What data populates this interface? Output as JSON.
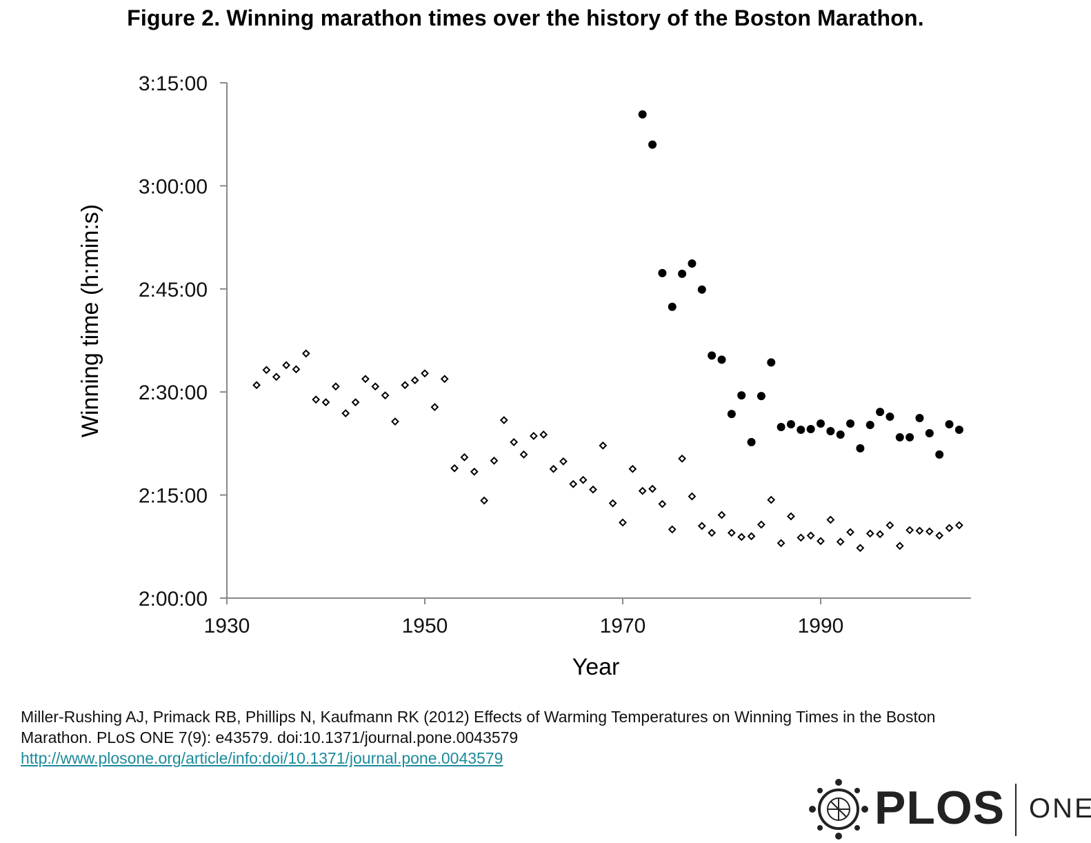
{
  "title": "Figure 2. Winning marathon times over the history of the Boston Marathon.",
  "citation": {
    "line1": "Miller-Rushing AJ, Primack RB, Phillips N, Kaufmann RK (2012) Effects of Warming Temperatures on Winning Times in the Boston",
    "line2": "Marathon. PLoS ONE 7(9): e43579. doi:10.1371/journal.pone.0043579",
    "link": "http://www.plosone.org/article/info:doi/10.1371/journal.pone.0043579"
  },
  "logo": {
    "brand": "PLOS",
    "sub": "ONE"
  },
  "colors": {
    "axis": "#888888",
    "marker": "#000000",
    "link": "#1a8a9a"
  },
  "chart_data": {
    "type": "scatter",
    "title": "",
    "xlabel": "Year",
    "ylabel": "Winning time (h:min:s)",
    "xlim": [
      1930,
      2005
    ],
    "ylim": [
      120,
      195
    ],
    "xticks": [
      1930,
      1950,
      1970,
      1990
    ],
    "yticks": [
      {
        "value": 120,
        "label": "2:00:00"
      },
      {
        "value": 135,
        "label": "2:15:00"
      },
      {
        "value": 150,
        "label": "2:30:00"
      },
      {
        "value": 165,
        "label": "2:45:00"
      },
      {
        "value": 180,
        "label": "3:00:00"
      },
      {
        "value": 195,
        "label": "3:15:00"
      }
    ],
    "y_units": "minutes",
    "grid": false,
    "legend": "none",
    "series": [
      {
        "marker": "open-diamond",
        "x": [
          1933,
          1934,
          1935,
          1936,
          1937,
          1938,
          1939,
          1940,
          1941,
          1942,
          1943,
          1944,
          1945,
          1946,
          1947,
          1948,
          1949,
          1950,
          1951,
          1952,
          1953,
          1954,
          1955,
          1956,
          1957,
          1958,
          1959,
          1960,
          1961,
          1962,
          1963,
          1964,
          1965,
          1966,
          1967,
          1968,
          1969,
          1970,
          1971,
          1972,
          1973,
          1974,
          1975,
          1976,
          1977,
          1978,
          1979,
          1980,
          1981,
          1982,
          1983,
          1984,
          1985,
          1986,
          1987,
          1988,
          1989,
          1990,
          1991,
          1992,
          1993,
          1994,
          1995,
          1996,
          1997,
          1998,
          1999,
          2000,
          2001,
          2002,
          2003,
          2004
        ],
        "y": [
          151.0,
          153.2,
          152.2,
          153.9,
          153.3,
          155.6,
          148.9,
          148.5,
          150.8,
          146.9,
          148.5,
          151.9,
          150.8,
          149.5,
          145.7,
          151.0,
          151.7,
          152.7,
          147.8,
          151.9,
          138.9,
          140.5,
          138.4,
          134.2,
          140.0,
          145.9,
          142.7,
          140.9,
          143.6,
          143.8,
          138.8,
          139.9,
          136.6,
          137.2,
          135.8,
          142.2,
          133.8,
          131.0,
          138.8,
          135.6,
          135.9,
          133.7,
          130.0,
          140.3,
          134.8,
          130.5,
          129.5,
          132.1,
          129.5,
          128.9,
          129.0,
          130.7,
          134.3,
          128.0,
          131.9,
          128.8,
          129.1,
          128.3,
          131.4,
          128.2,
          129.6,
          127.3,
          129.4,
          129.3,
          130.6,
          127.6,
          129.9,
          129.8,
          129.7,
          129.1,
          130.2,
          130.6
        ]
      },
      {
        "marker": "filled-circle",
        "x": [
          1972,
          1973,
          1974,
          1975,
          1976,
          1977,
          1978,
          1979,
          1980,
          1981,
          1982,
          1983,
          1984,
          1985,
          1986,
          1987,
          1988,
          1989,
          1990,
          1991,
          1992,
          1993,
          1994,
          1995,
          1996,
          1997,
          1998,
          1999,
          2000,
          2001,
          2002,
          2003,
          2004
        ],
        "y": [
          190.4,
          186.0,
          167.3,
          162.4,
          167.2,
          168.7,
          164.9,
          155.3,
          154.7,
          146.8,
          149.5,
          142.7,
          149.4,
          154.3,
          144.9,
          145.3,
          144.5,
          144.6,
          145.4,
          144.3,
          143.8,
          145.4,
          141.8,
          145.2,
          147.1,
          146.4,
          143.4,
          143.4,
          146.2,
          144.0,
          140.9,
          145.3,
          144.5
        ]
      }
    ]
  }
}
